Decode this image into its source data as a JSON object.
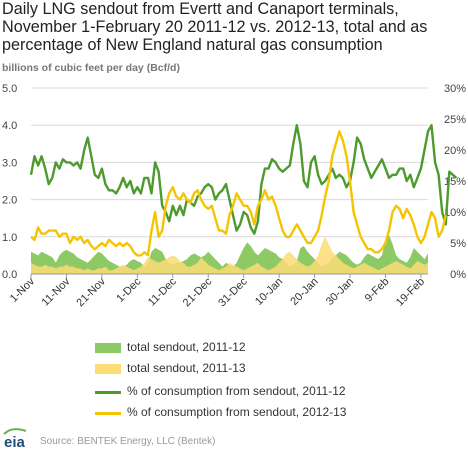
{
  "chart_data": {
    "type": "line",
    "title_lines": [
      "Daily LNG sendout from Evertt and Canaport terminals,",
      "November 1-February 20 2011-12 vs. 2012-13, total and as",
      "percentage of New England natural gas consumption"
    ],
    "ylabel": "billions of cubic feet per day (Bcf/d)",
    "y_left": {
      "min": 0,
      "max": 5.0,
      "ticks": [
        "0.0",
        "1.0",
        "2.0",
        "3.0",
        "4.0",
        "5.0"
      ]
    },
    "y_right": {
      "min": 0,
      "max": 30,
      "ticks": [
        "0%",
        "5%",
        "10%",
        "15%",
        "20%",
        "25%",
        "30%"
      ]
    },
    "x_tick_labels": [
      "1-Nov",
      "11-Nov",
      "21-Nov",
      "1-Dec",
      "11-Dec",
      "21-Dec",
      "31-Dec",
      "10-Jan",
      "20-Jan",
      "30-Jan",
      "9-Feb",
      "19-Feb"
    ],
    "grid": true,
    "series": [
      {
        "name": "total sendout, 2011-12",
        "kind": "area",
        "axis": "left",
        "color": "#8dc965",
        "values": [
          0.6,
          0.55,
          0.5,
          0.6,
          0.55,
          0.5,
          0.45,
          0.3,
          0.5,
          0.6,
          0.65,
          0.6,
          0.55,
          0.45,
          0.4,
          0.35,
          0.3,
          0.4,
          0.5,
          0.6,
          0.55,
          0.45,
          0.35,
          0.3,
          0.25,
          0.2,
          0.2,
          0.25,
          0.35,
          0.4,
          0.35,
          0.3,
          0.2,
          0.3,
          0.6,
          0.7,
          0.65,
          0.6,
          0.4,
          0.3,
          0.25,
          0.3,
          0.3,
          0.35,
          0.4,
          0.5,
          0.55,
          0.5,
          0.45,
          0.5,
          0.6,
          0.5,
          0.4,
          0.3,
          0.2,
          0.3,
          0.25,
          0.2,
          0.3,
          0.5,
          0.7,
          0.85,
          0.75,
          0.6,
          0.5,
          0.6,
          0.7,
          0.65,
          0.6,
          0.55,
          0.45,
          0.4,
          0.3,
          0.2,
          0.25,
          0.35,
          0.7,
          0.75,
          0.6,
          0.5,
          0.4,
          0.3,
          0.2,
          0.25,
          0.3,
          0.45,
          0.5,
          0.6,
          0.55,
          0.5,
          0.4,
          0.3,
          0.25,
          0.3,
          0.45,
          0.55,
          0.5,
          0.45,
          0.4,
          0.5,
          0.9,
          1.05,
          0.8,
          0.5,
          0.4,
          0.35,
          0.3,
          0.45,
          0.7,
          0.6,
          0.5,
          0.4,
          0.55
        ]
      },
      {
        "name": "total sendout, 2011-13",
        "kind": "area",
        "axis": "left",
        "color": "#fcdc75",
        "values": [
          0.3,
          0.25,
          0.2,
          0.2,
          0.25,
          0.2,
          0.2,
          0.15,
          0.2,
          0.2,
          0.25,
          0.2,
          0.2,
          0.15,
          0.15,
          0.1,
          0.15,
          0.1,
          0.1,
          0.15,
          0.15,
          0.2,
          0.1,
          0.1,
          0.15,
          0.2,
          0.25,
          0.2,
          0.15,
          0.1,
          0.15,
          0.2,
          0.3,
          0.45,
          0.4,
          0.35,
          0.3,
          0.35,
          0.4,
          0.45,
          0.5,
          0.45,
          0.35,
          0.3,
          0.2,
          0.2,
          0.25,
          0.3,
          0.45,
          0.35,
          0.25,
          0.2,
          0.15,
          0.1,
          0.15,
          0.2,
          0.3,
          0.25,
          0.2,
          0.15,
          0.1,
          0.15,
          0.2,
          0.25,
          0.3,
          0.2,
          0.15,
          0.1,
          0.15,
          0.2,
          0.3,
          0.4,
          0.55,
          0.6,
          0.5,
          0.4,
          0.3,
          0.25,
          0.2,
          0.25,
          0.35,
          0.5,
          0.8,
          1.0,
          0.8,
          0.6,
          0.5,
          0.4,
          0.3,
          0.25,
          0.2,
          0.15,
          0.2,
          0.25,
          0.3,
          0.25,
          0.2,
          0.15,
          0.1,
          0.15,
          0.2,
          0.25,
          0.3,
          0.35,
          0.3,
          0.25,
          0.2,
          0.15,
          0.25,
          0.35,
          0.3,
          0.25,
          0.3
        ]
      },
      {
        "name": "% of consumption from sendout, 2011-12",
        "kind": "line",
        "axis": "right",
        "color": "#4e9a2e",
        "values": [
          16,
          19,
          17.5,
          19,
          17,
          14.5,
          15.5,
          18,
          17,
          18.5,
          18,
          18,
          17.5,
          18,
          17,
          20,
          22,
          19,
          16,
          15.5,
          17,
          14.5,
          13.5,
          13.5,
          13,
          14,
          15.5,
          14,
          15,
          13,
          14,
          13,
          15.5,
          15.5,
          13,
          18,
          16.5,
          11,
          10,
          8.5,
          11,
          9.5,
          11,
          9.5,
          12,
          11.5,
          11,
          12.5,
          13,
          14,
          14.5,
          14,
          12,
          13,
          13.5,
          14.5,
          12,
          9.5,
          7,
          8,
          10,
          9.5,
          7.5,
          6.5,
          8.5,
          14.5,
          17,
          17,
          18.5,
          18,
          17,
          16.5,
          17,
          17.5,
          21,
          24,
          21,
          15,
          14,
          18,
          19,
          16,
          14.5,
          15,
          16,
          17,
          15.5,
          16,
          15.5,
          14,
          15,
          18,
          22,
          21,
          18.5,
          17,
          15.5,
          16.5,
          17.5,
          18.5,
          17,
          15.5,
          16,
          16,
          17,
          17,
          15,
          16,
          14,
          15.5,
          17,
          20,
          23,
          24,
          18,
          16,
          10,
          8,
          16.5,
          16,
          15.5
        ]
      },
      {
        "name": "% of consumption from sendout, 2012-13",
        "kind": "line",
        "axis": "right",
        "color": "#f5c400",
        "values": [
          6,
          5.5,
          7.5,
          6.5,
          6.5,
          7,
          7,
          7,
          6,
          6.5,
          6.5,
          5,
          6,
          5.5,
          6,
          5,
          5.5,
          4.5,
          4,
          4.5,
          5,
          4.5,
          5.5,
          5,
          4.5,
          5,
          4.5,
          5,
          4.5,
          3.5,
          3,
          3,
          3.5,
          3,
          7,
          10,
          6,
          7,
          11,
          13,
          14,
          12.5,
          12,
          13,
          12,
          11.5,
          13,
          13.5,
          12,
          11,
          10.5,
          11,
          9,
          7,
          7,
          6.5,
          9.5,
          11,
          13,
          12,
          11,
          11,
          10,
          8,
          11,
          12,
          13.5,
          12,
          12.5,
          11,
          9,
          7,
          6,
          6,
          7,
          8,
          7,
          6,
          5,
          5,
          6,
          7,
          9.5,
          12.5,
          15,
          19,
          21,
          23,
          21.5,
          19,
          15,
          10,
          8,
          6,
          5,
          4,
          4,
          3.5,
          3.5,
          4,
          5,
          7,
          10,
          11,
          10.5,
          9,
          10.5,
          9.5,
          8,
          6,
          5,
          6,
          8,
          10,
          9,
          6,
          7,
          9.5
        ]
      }
    ],
    "source": "Source:  BENTEK Energy, LLC (Bentek)",
    "logo_text": "eia"
  }
}
